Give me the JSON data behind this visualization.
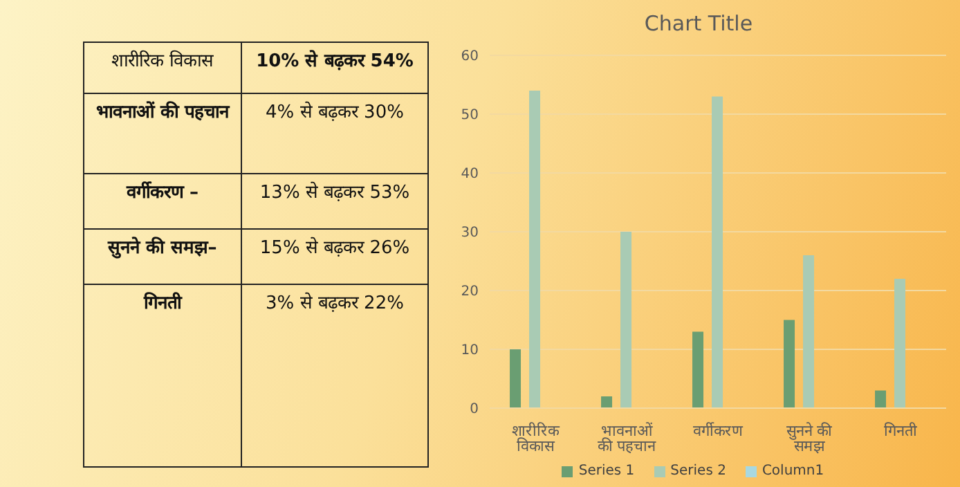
{
  "chart_data": [
    {
      "type": "other",
      "annotations": [
        "शारीरिक विकास",
        "10% से बढ़कर 54%",
        "भावनाओं की पहचान",
        "4% से बढ़कर 30%",
        "वर्गीकरण –",
        "13% से बढ़कर 53%",
        "सुनने की समझ–",
        "15% से बढ़कर 26%",
        "गिनती",
        "3% से बढ़कर 22%"
      ]
    },
    {
      "type": "bar",
      "title": "Chart Title",
      "categories": [
        "शारीरिक विकास",
        "भावनाओं की पहचान",
        "वर्गीकरण",
        "सुनने की समझ",
        "गिनती"
      ],
      "series": [
        {
          "name": "Series 1",
          "color": "#6a9e72",
          "values": [
            10,
            2,
            13,
            15,
            3
          ]
        },
        {
          "name": "Series 2",
          "color": "#a9cbb4",
          "values": [
            54,
            30,
            53,
            26,
            22
          ]
        },
        {
          "name": "Column1",
          "color": "#a8d8e0",
          "values": [
            null,
            null,
            null,
            null,
            null
          ]
        }
      ],
      "ylim": [
        0,
        60
      ],
      "yticks": [
        0,
        10,
        20,
        30,
        40,
        50,
        60
      ],
      "grid": "y",
      "legend": "bottom"
    }
  ]
}
